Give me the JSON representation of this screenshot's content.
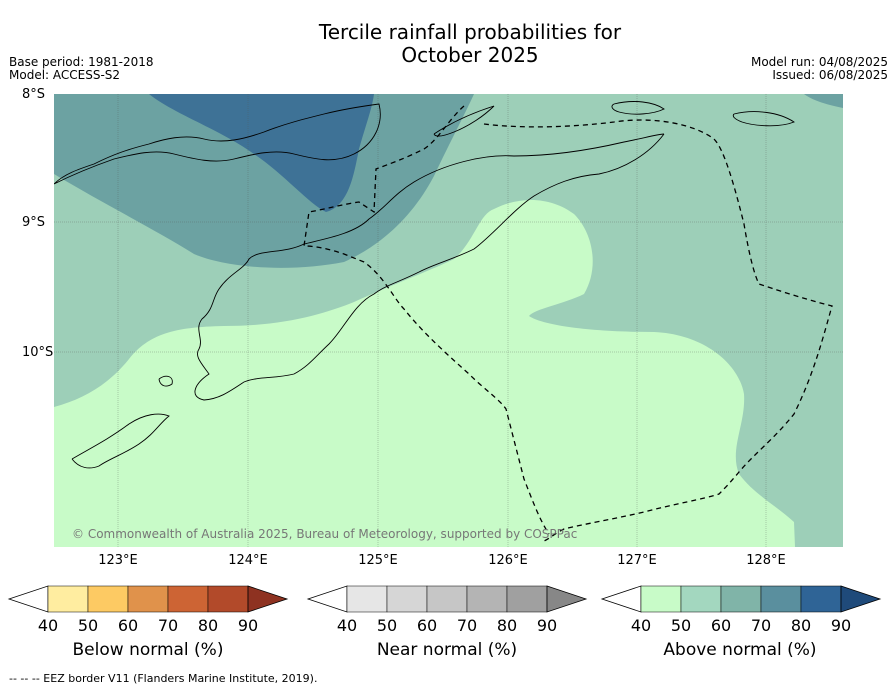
{
  "title_line1": "Tercile rainfall probabilities for",
  "title_line2": "October 2025",
  "base_period": "Base period: 1981-2018",
  "model": "Model: ACCESS-S2",
  "model_run": "Model run: 04/08/2025",
  "issued": "Issued: 06/08/2025",
  "lat_labels": [
    "8°S",
    "9°S",
    "10°S"
  ],
  "lon_labels": [
    "123°E",
    "124°E",
    "125°E",
    "126°E",
    "127°E",
    "128°E"
  ],
  "copyright": "© Commonwealth of Australia 2025, Bureau of Meteorology, supported by COSPPac",
  "legends": [
    {
      "title": "Below normal (%)",
      "ticks": [
        "40",
        "50",
        "60",
        "70",
        "80",
        "90"
      ],
      "colors": [
        "#ffffff",
        "#ffeda0",
        "#fdca63",
        "#e0924b",
        "#cd6434",
        "#b24a2a",
        "#8e3221"
      ]
    },
    {
      "title": "Near normal (%)",
      "ticks": [
        "40",
        "50",
        "60",
        "70",
        "80",
        "90"
      ],
      "colors": [
        "#ffffff",
        "#e6e6e6",
        "#d6d6d6",
        "#c6c6c6",
        "#b4b4b4",
        "#a0a0a0",
        "#878787"
      ]
    },
    {
      "title": "Above normal (%)",
      "ticks": [
        "40",
        "50",
        "60",
        "70",
        "80",
        "90"
      ],
      "colors": [
        "#ffffff",
        "#c8fbc8",
        "#a3d7bf",
        "#80b4a8",
        "#5a8f9e",
        "#2f6496",
        "#1f4a7a"
      ]
    }
  ],
  "footer": "--  --  -- EEZ border V11 (Flanders Marine Institute, 2019).",
  "map_colors": {
    "above_40": "#c8fbc8",
    "above_50": "#9dcfb8",
    "above_60": "#6ca2a2",
    "above_70": "#3e7296"
  }
}
